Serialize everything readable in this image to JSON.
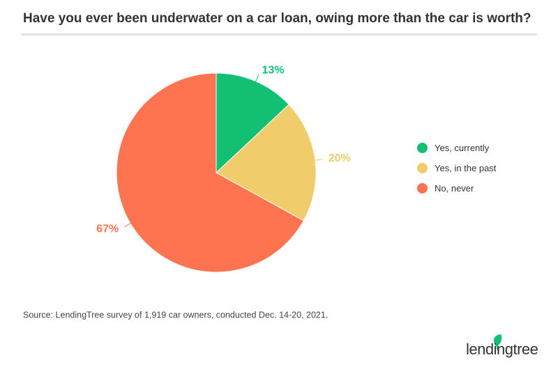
{
  "chart_data": {
    "type": "pie",
    "title": "Have you ever been underwater on a car loan, owing more than the car is worth?",
    "categories": [
      "Yes, currently",
      "Yes, in the past",
      "No, never"
    ],
    "values": [
      13,
      20,
      67
    ],
    "value_labels": [
      "13%",
      "20%",
      "67%"
    ],
    "colors": [
      "#13bf72",
      "#f0cc6a",
      "#ff7450"
    ],
    "legend": "right",
    "source": "Source: LendingTree survey of 1,919 car owners, conducted Dec. 14-20, 2021.",
    "logo": "lendingtree"
  }
}
